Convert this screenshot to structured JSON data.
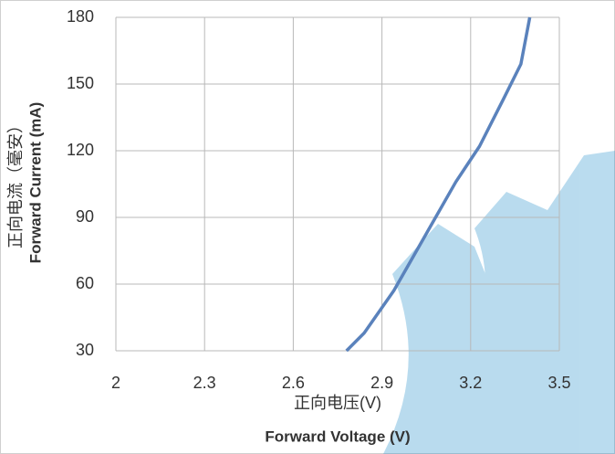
{
  "chart_data": {
    "type": "line",
    "xlabel": "正向电压(V)",
    "xlabel2": "Forward Voltage (V)",
    "ylabel": "正向电流（毫安）",
    "ylabel2": "Forward Current (mA)",
    "x": [
      2.78,
      2.84,
      2.94,
      3.06,
      3.15,
      3.23,
      3.31,
      3.37,
      3.4
    ],
    "series": [
      {
        "color": "#5a82bc",
        "values": [
          30,
          38,
          57,
          85,
          106,
          122,
          143,
          159,
          180
        ]
      }
    ],
    "xlim": [
      2,
      3.5
    ],
    "xticks": [
      2,
      2.3,
      2.6,
      2.9,
      3.2,
      3.5
    ],
    "ylim": [
      30,
      180
    ],
    "yticks": [
      30,
      60,
      90,
      120,
      150,
      180
    ],
    "grid": true
  }
}
